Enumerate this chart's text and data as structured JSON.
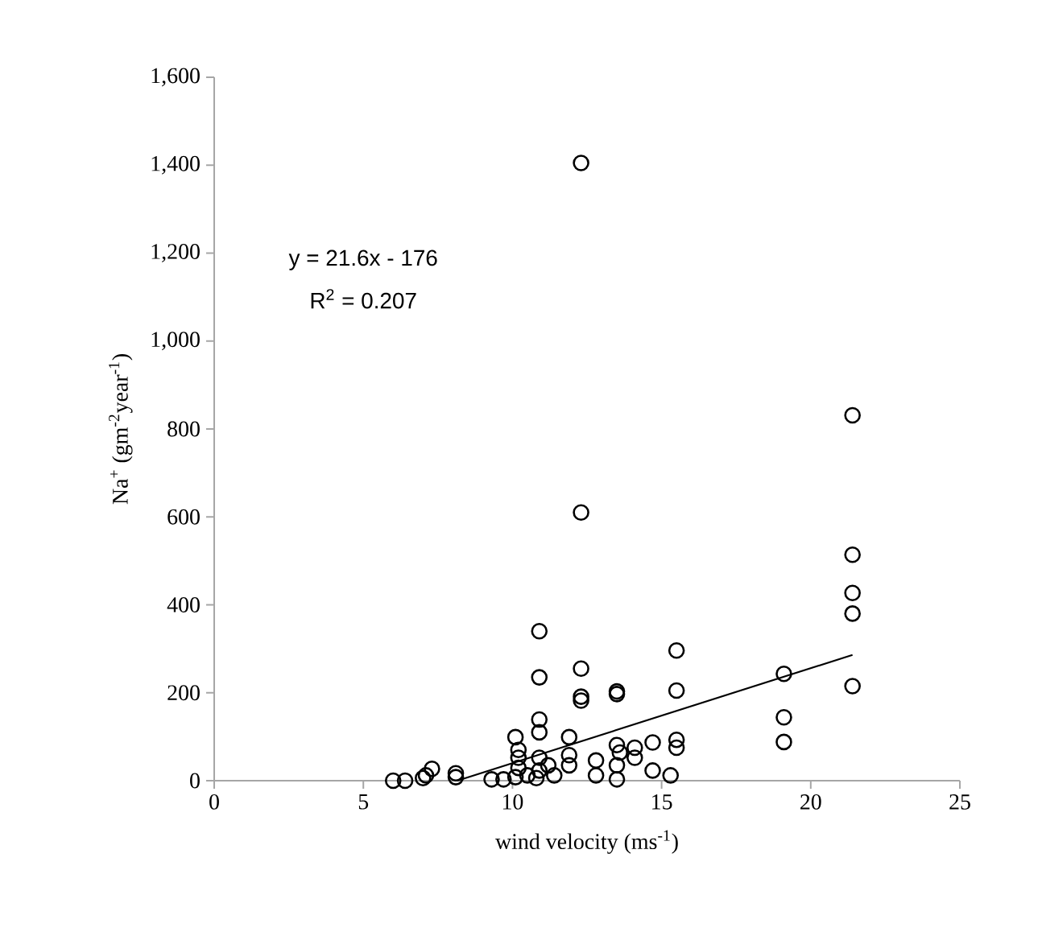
{
  "chart_data": {
    "type": "scatter",
    "xlabel": "wind velocity (ms$^{-1}$)",
    "ylabel": "Na$^{+}$ (gm$^{-2}$year$^{-1}$)",
    "xlim": [
      0,
      25
    ],
    "ylim": [
      0,
      1600
    ],
    "xticks": [
      0,
      5,
      10,
      15,
      20,
      25
    ],
    "yticks": [
      0,
      200,
      400,
      600,
      800,
      {
        "value": 1000,
        "label": "1,000"
      },
      {
        "value": 1200,
        "label": "1,200"
      },
      {
        "value": 1400,
        "label": "1,400"
      },
      {
        "value": 1600,
        "label": "1,600"
      }
    ],
    "marker": "circle",
    "annotations": [
      "y = 21.6x - 176",
      "R$^{2}$ = 0.207"
    ],
    "series": [
      {
        "color": "#000000",
        "x": [
          6.0,
          6.4,
          7.0,
          7.1,
          7.3,
          8.1,
          8.1,
          9.3,
          9.7,
          10.1,
          10.2,
          10.2,
          10.2,
          10.1,
          10.5,
          10.9,
          10.9,
          10.9,
          10.9,
          10.9,
          10.9,
          10.8,
          11.2,
          11.4,
          11.9,
          11.9,
          11.9,
          12.3,
          12.3,
          12.3,
          12.3,
          12.3,
          12.8,
          12.8,
          13.5,
          13.5,
          13.5,
          13.6,
          13.5,
          13.5,
          14.1,
          14.1,
          14.7,
          14.7,
          15.3,
          15.5,
          15.5,
          15.5,
          15.5,
          19.1,
          19.1,
          19.1,
          21.4,
          21.4,
          21.4,
          21.4,
          21.4
        ],
        "values": [
          0,
          0,
          6,
          12,
          27,
          8,
          17,
          3,
          3,
          99,
          70,
          52,
          29,
          8,
          12,
          340,
          235,
          139,
          110,
          52,
          23,
          6,
          35,
          12,
          99,
          58,
          35,
          1405,
          610,
          255,
          191,
          182,
          46,
          12,
          203,
          197,
          81,
          64,
          35,
          3,
          75,
          52,
          87,
          23,
          12,
          296,
          205,
          93,
          75,
          243,
          144,
          88,
          831,
          514,
          427,
          380,
          215
        ]
      },
      {
        "type": "line",
        "color": "#000000",
        "marker": "none",
        "x": [
          8.15,
          21.4
        ],
        "values": [
          0,
          286
        ]
      }
    ]
  }
}
